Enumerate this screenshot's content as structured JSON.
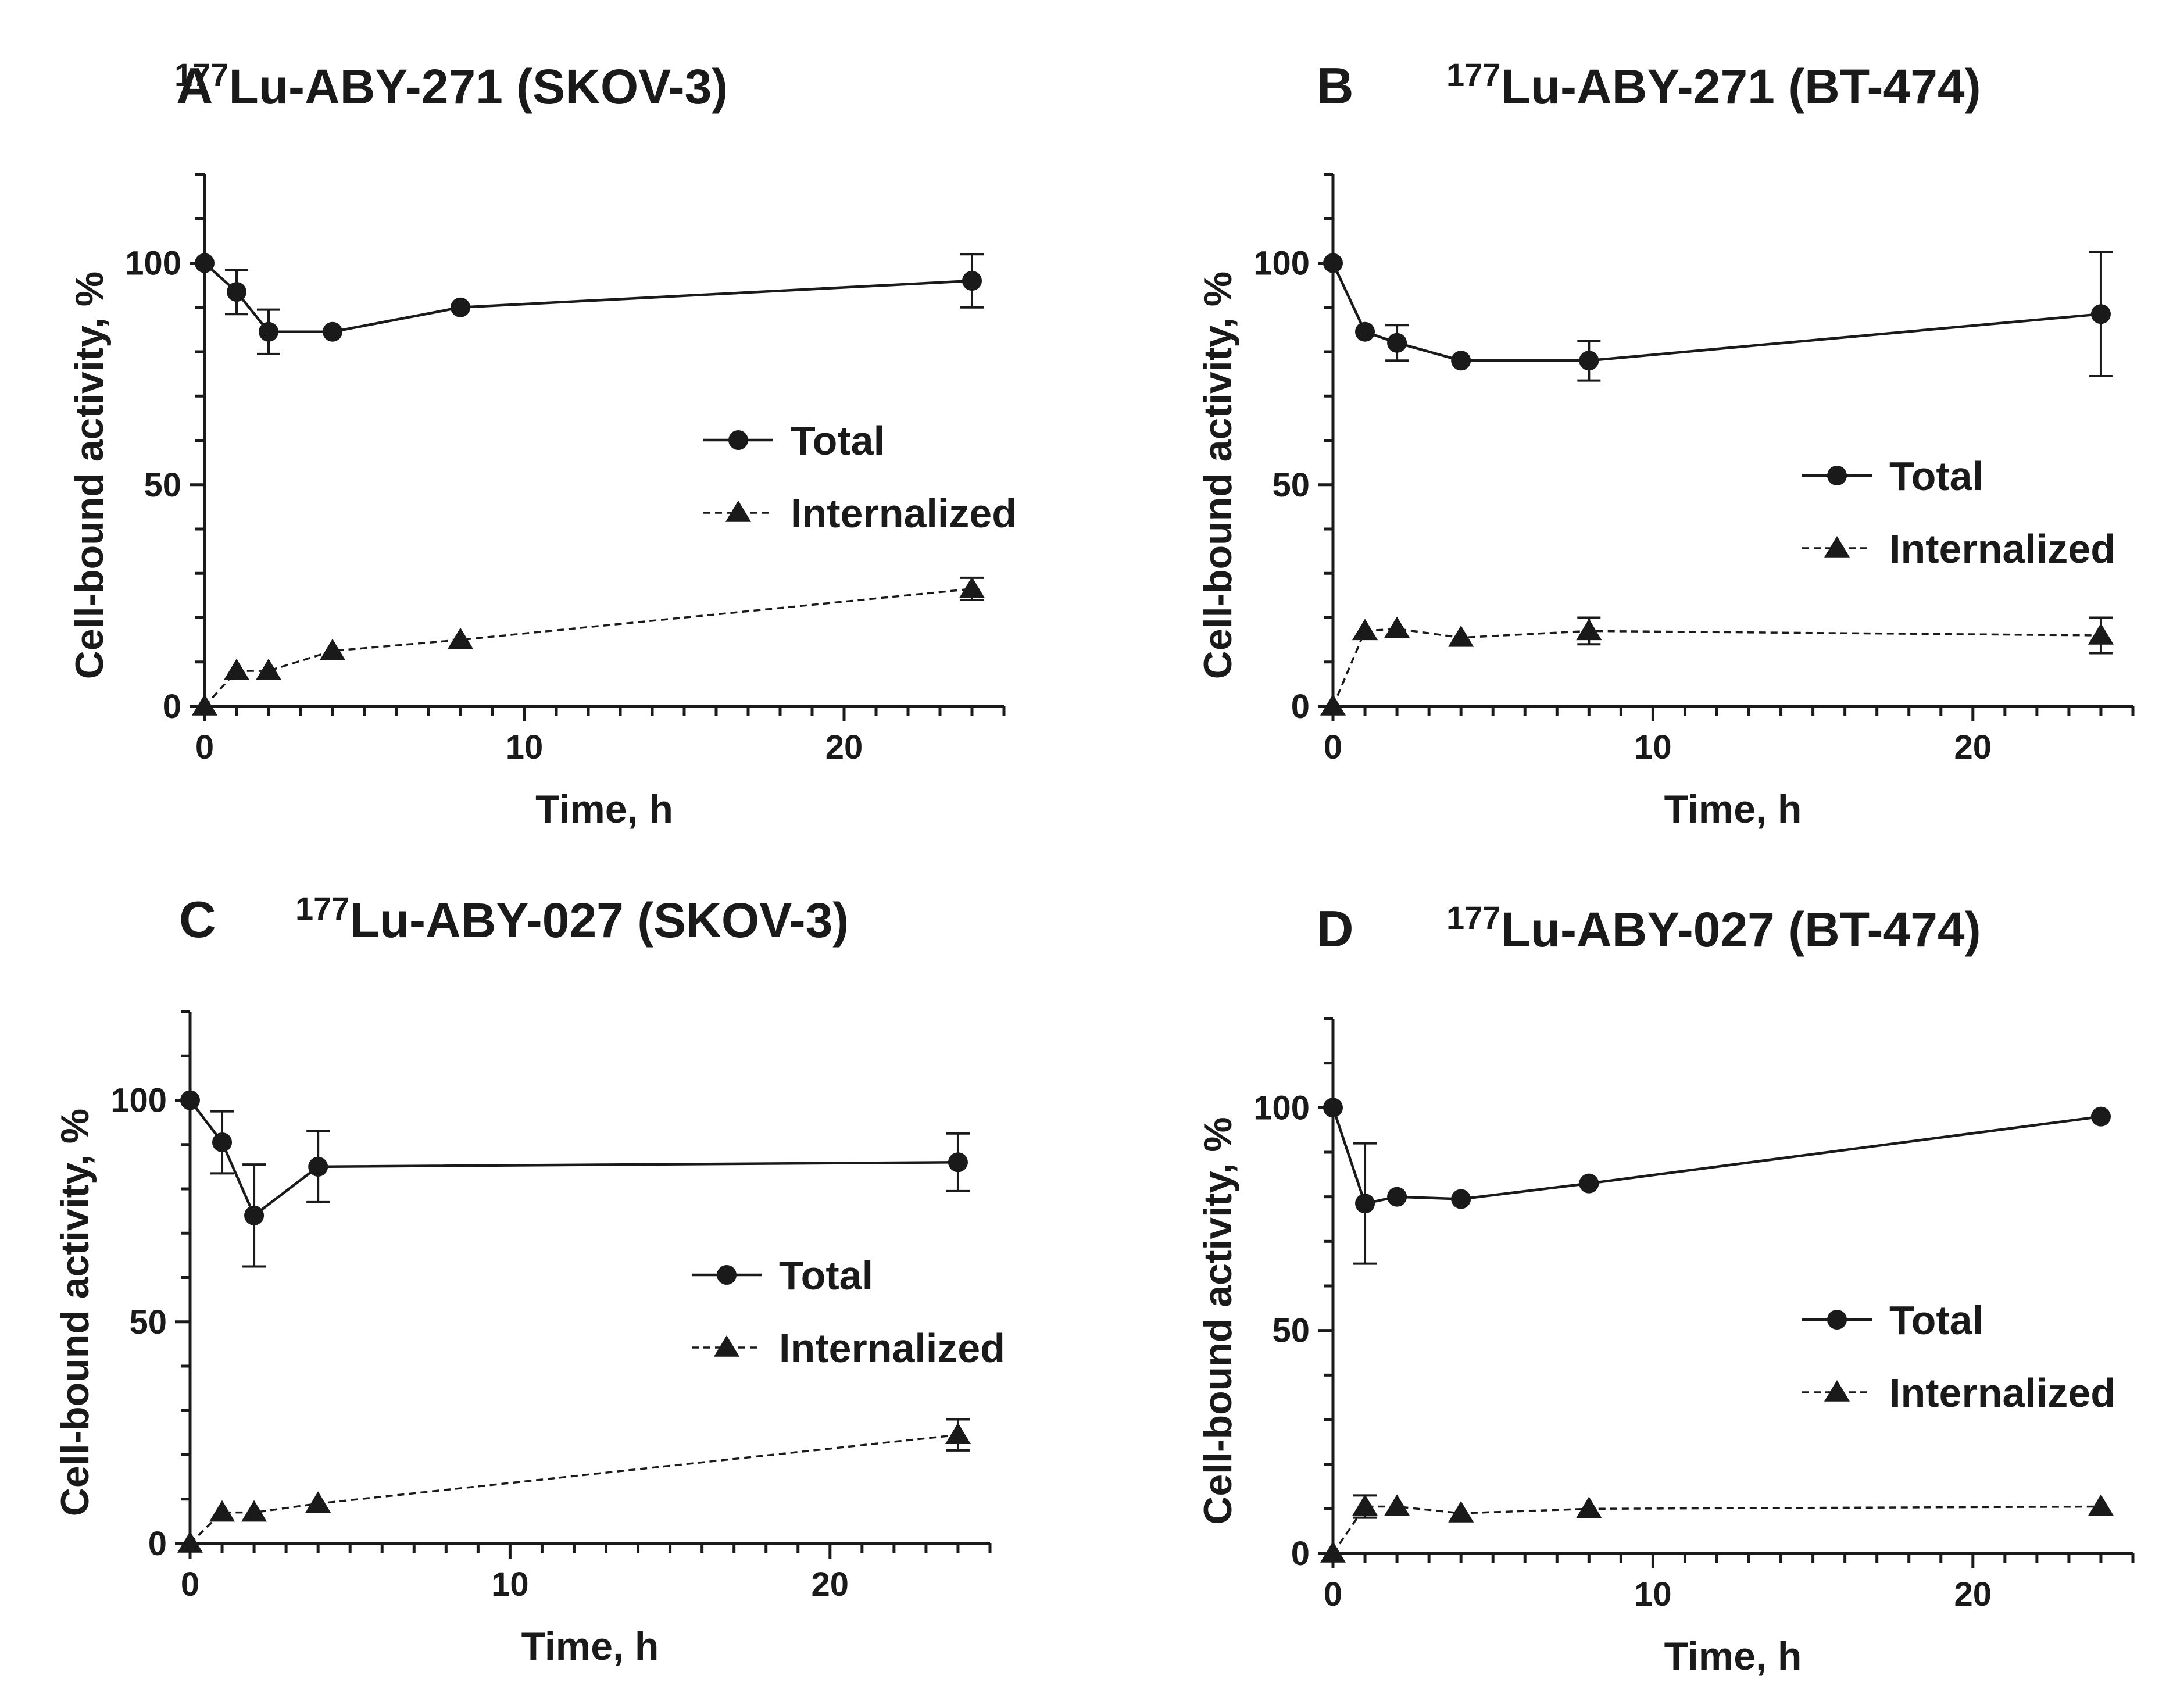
{
  "figure": {
    "panels": [
      {
        "letter": "A",
        "title": {
          "sup": "177",
          "main": "Lu-ABY-271 (SKOV-3)"
        },
        "legend": [
          "Total",
          "Internalized"
        ]
      },
      {
        "letter": "B",
        "title": {
          "sup": "177",
          "main": "Lu-ABY-271 (BT-474)"
        },
        "legend": [
          "Total",
          "Internalized"
        ]
      },
      {
        "letter": "C",
        "title": {
          "sup": "177",
          "main": "Lu-ABY-027 (SKOV-3)"
        },
        "legend": [
          "Total",
          "Internalized"
        ]
      },
      {
        "letter": "D",
        "title": {
          "sup": "177",
          "main": "Lu-ABY-027 (BT-474)"
        },
        "legend": [
          "Total",
          "Internalized"
        ]
      }
    ]
  },
  "chart_data": [
    {
      "type": "line",
      "panel": "A",
      "title": "177Lu-ABY-271 (SKOV-3)",
      "xlabel": "Time, h",
      "ylabel": "Cell-bound activity, %",
      "xlim": [
        0,
        25
      ],
      "ylim": [
        0,
        120
      ],
      "xticks": [
        0,
        10,
        20
      ],
      "yticks": [
        0,
        50,
        100
      ],
      "legend_position": "center-right",
      "series": [
        {
          "name": "Total",
          "marker": "circle",
          "line": "solid",
          "x": [
            0,
            1,
            2,
            4,
            8,
            24
          ],
          "y": [
            100,
            93.5,
            84.5,
            84.5,
            90,
            96
          ],
          "err": [
            0,
            5,
            5,
            0,
            0,
            6
          ]
        },
        {
          "name": "Internalized",
          "marker": "triangle",
          "line": "dashed",
          "x": [
            0,
            1,
            2,
            4,
            8,
            24
          ],
          "y": [
            0,
            8,
            8,
            12.5,
            15,
            26.5
          ],
          "err": [
            0,
            0,
            0,
            0,
            0,
            2.5
          ]
        }
      ]
    },
    {
      "type": "line",
      "panel": "B",
      "title": "177Lu-ABY-271 (BT-474)",
      "xlabel": "Time, h",
      "ylabel": "Cell-bound activity, %",
      "xlim": [
        0,
        25
      ],
      "ylim": [
        0,
        120
      ],
      "xticks": [
        0,
        10,
        20
      ],
      "yticks": [
        0,
        50,
        100
      ],
      "legend_position": "center-right",
      "series": [
        {
          "name": "Total",
          "marker": "circle",
          "line": "solid",
          "x": [
            0,
            1,
            2,
            4,
            8,
            24
          ],
          "y": [
            100,
            84.5,
            82,
            78,
            78,
            88.5
          ],
          "err": [
            0,
            0,
            4,
            0,
            4.5,
            14
          ]
        },
        {
          "name": "Internalized",
          "marker": "triangle",
          "line": "dashed",
          "x": [
            0,
            1,
            2,
            4,
            8,
            24
          ],
          "y": [
            0,
            17,
            17.5,
            15.5,
            17,
            16
          ],
          "err": [
            0,
            0,
            0,
            0,
            3,
            4
          ]
        }
      ]
    },
    {
      "type": "line",
      "panel": "C",
      "title": "177Lu-ABY-027 (SKOV-3)",
      "xlabel": "Time, h",
      "ylabel": "Cell-bound activity, %",
      "xlim": [
        0,
        25
      ],
      "ylim": [
        0,
        120
      ],
      "xticks": [
        0,
        10,
        20
      ],
      "yticks": [
        0,
        50,
        100
      ],
      "legend_position": "center-right",
      "series": [
        {
          "name": "Total",
          "marker": "circle",
          "line": "solid",
          "x": [
            0,
            1,
            2,
            4,
            24
          ],
          "y": [
            100,
            90.5,
            74,
            85,
            86
          ],
          "err": [
            0,
            7,
            11.5,
            8,
            6.5
          ]
        },
        {
          "name": "Internalized",
          "marker": "triangle",
          "line": "dashed",
          "x": [
            0,
            1,
            2,
            4,
            24
          ],
          "y": [
            0,
            7,
            7,
            9,
            24.5
          ],
          "err": [
            0,
            0,
            0,
            0,
            3.5
          ]
        }
      ]
    },
    {
      "type": "line",
      "panel": "D",
      "title": "177Lu-ABY-027 (BT-474)",
      "xlabel": "Time, h",
      "ylabel": "Cell-bound activity, %",
      "xlim": [
        0,
        25
      ],
      "ylim": [
        0,
        120
      ],
      "xticks": [
        0,
        10,
        20
      ],
      "yticks": [
        0,
        50,
        100
      ],
      "legend_position": "center-right",
      "series": [
        {
          "name": "Total",
          "marker": "circle",
          "line": "solid",
          "x": [
            0,
            1,
            2,
            4,
            8,
            24
          ],
          "y": [
            100,
            78.5,
            80,
            79.5,
            83,
            98
          ],
          "err": [
            0,
            13.5,
            0,
            0,
            0,
            0
          ]
        },
        {
          "name": "Internalized",
          "marker": "triangle",
          "line": "dashed",
          "x": [
            0,
            1,
            2,
            4,
            8,
            24
          ],
          "y": [
            0,
            10.5,
            10.5,
            9,
            10,
            10.5
          ],
          "err": [
            0,
            2.5,
            0,
            0,
            0,
            0
          ]
        }
      ]
    }
  ]
}
